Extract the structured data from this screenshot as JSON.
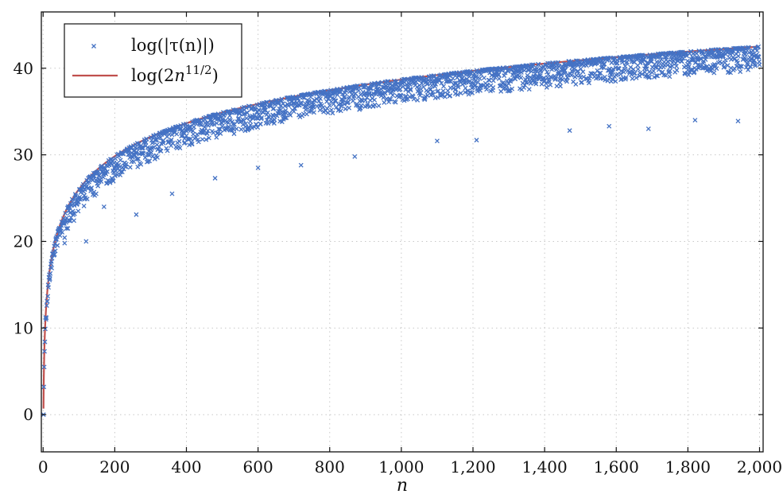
{
  "chart_data": {
    "type": "scatter",
    "xlabel": "n",
    "ylabel": "",
    "xlim": [
      -5,
      2010
    ],
    "ylim": [
      -4.3,
      46.5
    ],
    "xticks": [
      0,
      200,
      400,
      600,
      800,
      1000,
      1200,
      1400,
      1600,
      1800,
      2000
    ],
    "xtick_labels": [
      "0",
      "200",
      "400",
      "600",
      "800",
      "1,000",
      "1,200",
      "1,400",
      "1,600",
      "1,800",
      "2,000"
    ],
    "yticks": [
      0,
      10,
      20,
      30,
      40
    ],
    "ytick_labels": [
      "0",
      "10",
      "20",
      "30",
      "40"
    ],
    "grid": true,
    "legend": {
      "placement": "top-left"
    },
    "series": [
      {
        "name": "log(|τ(n)|)",
        "marker": "x",
        "color": "#4472c4",
        "x_range": [
          1,
          2000
        ],
        "note_points": "one point per n; values lie at or below the bound curve",
        "x": [
          1,
          2,
          3,
          4,
          5,
          6,
          8,
          10,
          15,
          20,
          30,
          50,
          75,
          100,
          125,
          150,
          175,
          200,
          250,
          300,
          350,
          400,
          450,
          500,
          550,
          600,
          650,
          700,
          750,
          800,
          850,
          900,
          950,
          1000,
          1050,
          1100,
          1150,
          1200,
          1250,
          1300,
          1350,
          1400,
          1450,
          1500,
          1550,
          1600,
          1650,
          1700,
          1750,
          1800,
          1850,
          1900,
          1950,
          2000
        ],
        "y": [
          0,
          3.2,
          5.5,
          7.3,
          8.4,
          9.9,
          11.0,
          12.6,
          14.7,
          16.3,
          18.4,
          21.2,
          23.3,
          24.9,
          26.1,
          27.0,
          27.8,
          28.6,
          29.7,
          30.6,
          31.5,
          32.2,
          32.8,
          33.3,
          33.8,
          34.2,
          34.6,
          35.0,
          35.4,
          35.7,
          36.0,
          36.3,
          36.6,
          36.8,
          37.1,
          37.3,
          37.5,
          37.8,
          38.0,
          38.2,
          38.4,
          38.5,
          38.7,
          38.9,
          39.1,
          39.2,
          39.4,
          39.5,
          39.7,
          39.8,
          40.0,
          40.1,
          40.2,
          40.4
        ],
        "outliers": [
          [
            60,
            19.8
          ],
          [
            120,
            20.0
          ],
          [
            170,
            24.0
          ],
          [
            260,
            23.1
          ],
          [
            360,
            25.5
          ],
          [
            480,
            27.3
          ],
          [
            600,
            28.5
          ],
          [
            720,
            28.8
          ],
          [
            870,
            29.8
          ],
          [
            1100,
            31.6
          ],
          [
            1210,
            31.7
          ],
          [
            1470,
            32.8
          ],
          [
            1580,
            33.3
          ],
          [
            1690,
            33.0
          ],
          [
            1820,
            34.0
          ],
          [
            1940,
            33.9
          ]
        ]
      },
      {
        "name": "log(2n^{11/2})",
        "name_parts": {
          "prefix": "log(2",
          "var": "n",
          "exp": "11/2",
          "suffix": ")"
        },
        "type": "line",
        "color": "#c0504d",
        "formula": "ln(2) + 5.5*ln(n)",
        "x": [
          1,
          2,
          5,
          10,
          20,
          50,
          100,
          200,
          400,
          600,
          800,
          1000,
          1200,
          1400,
          1600,
          1800,
          2000
        ],
        "y": [
          0.69,
          4.5,
          9.54,
          13.36,
          17.17,
          22.21,
          26.02,
          29.83,
          33.65,
          35.88,
          37.46,
          38.69,
          39.69,
          40.54,
          41.27,
          41.92,
          42.5
        ]
      }
    ]
  }
}
